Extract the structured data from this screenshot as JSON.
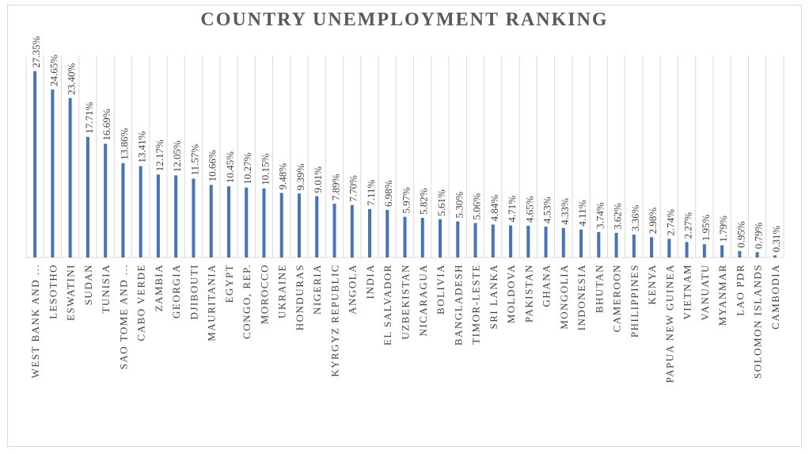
{
  "chart_data": {
    "type": "bar",
    "title": "COUNTRY UNEMPLOYMENT RANKING",
    "categories": [
      "WEST BANK AND ...",
      "LESOTHO",
      "ESWATINI",
      "SUDAN",
      "TUNISIA",
      "SAO TOME AND ...",
      "CABO VERDE",
      "ZAMBIA",
      "GEORGIA",
      "DJIBOUTI",
      "MAURITANIA",
      "EGYPT",
      "CONGO, REP.",
      "MOROCCO",
      "UKRAINE",
      "HONDURAS",
      "NIGERIA",
      "KYRGYZ REPUBLIC",
      "ANGOLA",
      "INDIA",
      "EL SALVADOR",
      "UZBEKISTAN",
      "NICARAGUA",
      "BOLIVIA",
      "BANGLADESH",
      "TIMOR-LESTE",
      "SRI LANKA",
      "MOLDOVA",
      "PAKISTAN",
      "GHANA",
      "MONGOLIA",
      "INDONESIA",
      "BHUTAN",
      "CAMEROON",
      "PHILIPPINES",
      "KENYA",
      "PAPUA NEW GUINEA",
      "VIETNAM",
      "VANUATU",
      "MYANMAR",
      "LAO PDR",
      "SOLOMON ISLANDS",
      "CAMBODIA"
    ],
    "values": [
      27.35,
      24.65,
      23.4,
      17.71,
      16.69,
      13.86,
      13.41,
      12.17,
      12.05,
      11.57,
      10.66,
      10.45,
      10.27,
      10.15,
      9.48,
      9.39,
      9.01,
      7.89,
      7.7,
      7.11,
      6.98,
      5.97,
      5.82,
      5.61,
      5.3,
      5.06,
      4.84,
      4.71,
      4.65,
      4.53,
      4.33,
      4.11,
      3.74,
      3.62,
      3.36,
      2.98,
      2.74,
      2.27,
      1.95,
      1.79,
      0.95,
      0.79,
      0.31
    ],
    "value_labels": [
      "27.35%",
      "24.65%",
      "23.40%",
      "17.71%",
      "16.69%",
      "13.86%",
      "13.41%",
      "12.17%",
      "12.05%",
      "11.57%",
      "10.66%",
      "10.45%",
      "10.27%",
      "10.15%",
      "9.48%",
      "9.39%",
      "9.01%",
      "7.89%",
      "7.70%",
      "7.11%",
      "6.98%",
      "5.97%",
      "5.82%",
      "5.61%",
      "5.30%",
      "5.06%",
      "4.84%",
      "4.71%",
      "4.65%",
      "4.53%",
      "4.33%",
      "4.11%",
      "3.74%",
      "3.62%",
      "3.36%",
      "2.98%",
      "2.74%",
      "2.27%",
      "1.95%",
      "1.79%",
      "0.95%",
      "0.79%",
      "0.31%"
    ],
    "ylim": [
      0,
      30
    ],
    "bar_color": "#4472c4",
    "grid": "vertical",
    "legend": "none"
  }
}
